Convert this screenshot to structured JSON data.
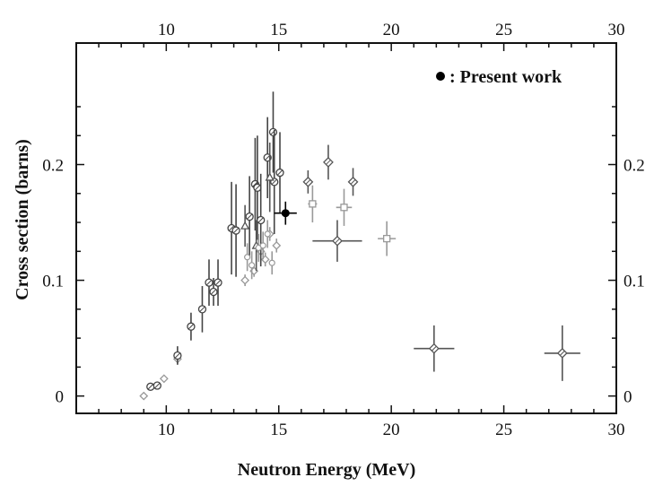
{
  "chart_data": {
    "type": "scatter",
    "title": "",
    "xlabel": "Neutron Energy (MeV)",
    "ylabel": "Cross section (barns)",
    "xlim": [
      6,
      30
    ],
    "ylim": [
      -0.015,
      0.305
    ],
    "x_ticks": [
      10,
      15,
      20,
      25,
      30
    ],
    "y_ticks": [
      0,
      0.1,
      0.2
    ],
    "x_tick_labels": [
      "10",
      "15",
      "20",
      "25",
      "30"
    ],
    "y_tick_labels": [
      "0",
      "0.1",
      "0.2"
    ],
    "top_tick_labels": [
      "10",
      "15",
      "20",
      "25",
      "30"
    ],
    "right_tick_labels": [
      "0",
      "0.1",
      "0.2"
    ],
    "grid": false,
    "legend_position": "top-right",
    "legend_label": ": Present work",
    "series": [
      {
        "name": "",
        "marker": "diamond-open",
        "points": [
          {
            "x": 9.0,
            "y": 0.0,
            "ye": 0.003,
            "xe": 0.05
          },
          {
            "x": 9.9,
            "y": 0.015,
            "ye": 0.003,
            "xe": 0.05
          },
          {
            "x": 10.5,
            "y": 0.032,
            "ye": 0.004,
            "xe": 0.05
          },
          {
            "x": 13.5,
            "y": 0.1,
            "ye": 0.005,
            "xe": 0.05
          },
          {
            "x": 13.9,
            "y": 0.108,
            "ye": 0.005,
            "xe": 0.05
          },
          {
            "x": 14.2,
            "y": 0.125,
            "ye": 0.006,
            "xe": 0.05
          },
          {
            "x": 14.4,
            "y": 0.118,
            "ye": 0.006,
            "xe": 0.05
          },
          {
            "x": 14.6,
            "y": 0.14,
            "ye": 0.006,
            "xe": 0.05
          },
          {
            "x": 14.9,
            "y": 0.13,
            "ye": 0.006,
            "xe": 0.05
          }
        ]
      },
      {
        "name": "",
        "marker": "circle-slash",
        "points": [
          {
            "x": 9.3,
            "y": 0.008,
            "ye": 0.003,
            "xe": 0.05
          },
          {
            "x": 9.6,
            "y": 0.009,
            "ye": 0.003,
            "xe": 0.05
          },
          {
            "x": 10.5,
            "y": 0.035,
            "ye": 0.008,
            "xe": 0.05
          },
          {
            "x": 11.1,
            "y": 0.06,
            "ye": 0.012,
            "xe": 0.05
          },
          {
            "x": 11.6,
            "y": 0.075,
            "ye": 0.02,
            "xe": 0.05
          },
          {
            "x": 11.9,
            "y": 0.098,
            "ye": 0.02,
            "xe": 0.05
          },
          {
            "x": 12.1,
            "y": 0.09,
            "ye": 0.012,
            "xe": 0.05
          },
          {
            "x": 12.3,
            "y": 0.098,
            "ye": 0.02,
            "xe": 0.05
          },
          {
            "x": 12.9,
            "y": 0.145,
            "ye": 0.04,
            "xe": 0.05
          },
          {
            "x": 13.1,
            "y": 0.143,
            "ye": 0.04,
            "xe": 0.05
          },
          {
            "x": 13.7,
            "y": 0.155,
            "ye": 0.035,
            "xe": 0.05
          },
          {
            "x": 13.95,
            "y": 0.183,
            "ye": 0.04,
            "xe": 0.05
          },
          {
            "x": 14.05,
            "y": 0.18,
            "ye": 0.045,
            "xe": 0.05
          },
          {
            "x": 14.2,
            "y": 0.152,
            "ye": 0.04,
            "xe": 0.05
          },
          {
            "x": 14.5,
            "y": 0.206,
            "ye": 0.035,
            "xe": 0.05
          },
          {
            "x": 14.75,
            "y": 0.228,
            "ye": 0.035,
            "xe": 0.05
          },
          {
            "x": 14.8,
            "y": 0.185,
            "ye": 0.045,
            "xe": 0.05
          },
          {
            "x": 15.05,
            "y": 0.193,
            "ye": 0.035,
            "xe": 0.05
          }
        ]
      },
      {
        "name": "",
        "marker": "triangle",
        "points": [
          {
            "x": 13.5,
            "y": 0.147,
            "ye": 0.018,
            "xe": 0.05
          },
          {
            "x": 14.0,
            "y": 0.13,
            "ye": 0.022,
            "xe": 0.05
          },
          {
            "x": 14.6,
            "y": 0.189,
            "ye": 0.03,
            "xe": 0.05
          }
        ]
      },
      {
        "name": "",
        "marker": "circle-small",
        "points": [
          {
            "x": 13.6,
            "y": 0.12,
            "ye": 0.012,
            "xe": 0.05
          },
          {
            "x": 13.8,
            "y": 0.113,
            "ye": 0.012,
            "xe": 0.05
          },
          {
            "x": 14.1,
            "y": 0.128,
            "ye": 0.012,
            "xe": 0.05
          },
          {
            "x": 14.3,
            "y": 0.13,
            "ye": 0.012,
            "xe": 0.05
          },
          {
            "x": 14.5,
            "y": 0.14,
            "ye": 0.012,
            "xe": 0.05
          },
          {
            "x": 14.7,
            "y": 0.115,
            "ye": 0.01,
            "xe": 0.05
          }
        ]
      },
      {
        "name": "",
        "marker": "diamond-hatched",
        "points": [
          {
            "x": 16.3,
            "y": 0.185,
            "ye": 0.01,
            "xe": 0.1
          },
          {
            "x": 17.2,
            "y": 0.202,
            "ye": 0.015,
            "xe": 0.1
          },
          {
            "x": 18.3,
            "y": 0.185,
            "ye": 0.012,
            "xe": 0.1
          }
        ]
      },
      {
        "name": "",
        "marker": "square-open",
        "points": [
          {
            "x": 16.5,
            "y": 0.166,
            "ye": 0.016,
            "xe": 0.2
          },
          {
            "x": 17.9,
            "y": 0.163,
            "ye": 0.016,
            "xe": 0.35
          },
          {
            "x": 19.8,
            "y": 0.136,
            "ye": 0.015,
            "xe": 0.4
          }
        ]
      },
      {
        "name": "",
        "marker": "diamond-open-large",
        "points": [
          {
            "x": 17.6,
            "y": 0.134,
            "ye": 0.018,
            "xe": 1.1
          },
          {
            "x": 21.9,
            "y": 0.041,
            "ye": 0.02,
            "xe": 0.9
          },
          {
            "x": 27.6,
            "y": 0.037,
            "ye": 0.024,
            "xe": 0.8
          }
        ]
      },
      {
        "name": "Present work",
        "marker": "filled-circle",
        "points": [
          {
            "x": 15.3,
            "y": 0.158,
            "ye": 0.01,
            "xe": 0.5
          }
        ]
      }
    ]
  }
}
